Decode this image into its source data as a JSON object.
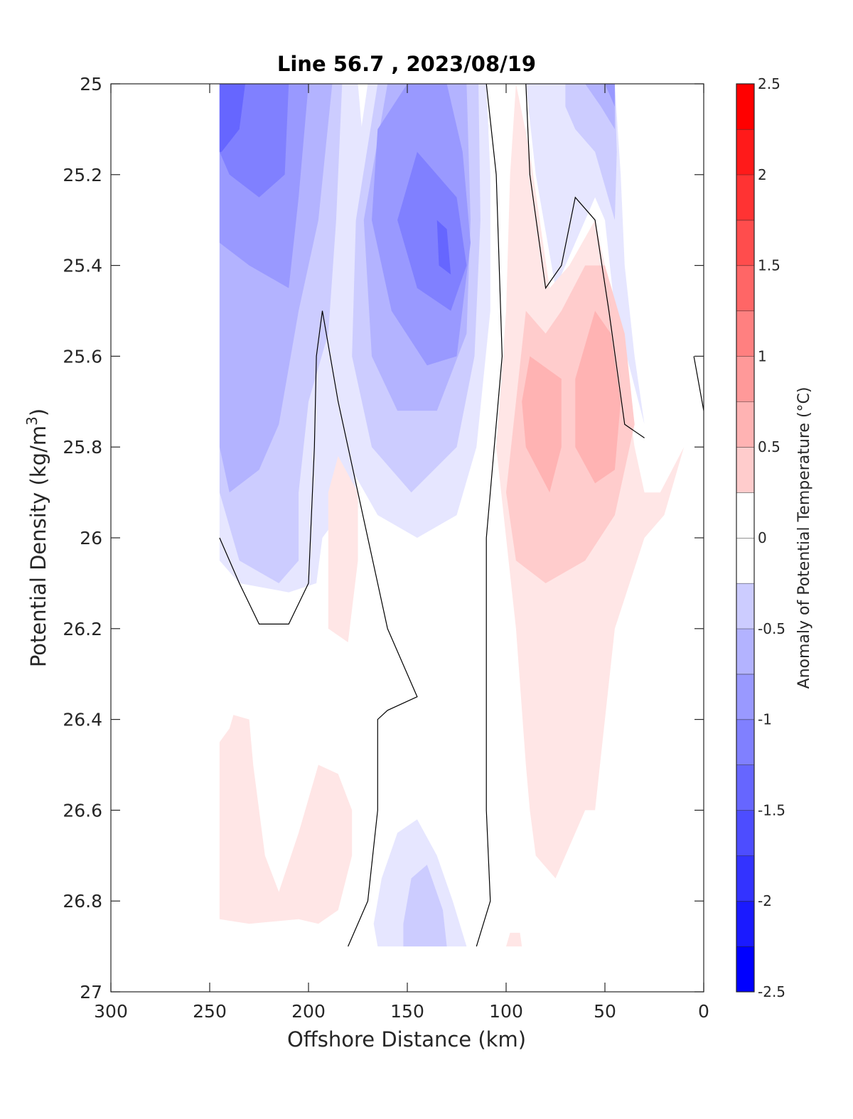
{
  "chart_data": {
    "type": "filled-contour",
    "title": "Line 56.7 , 2023/08/19",
    "xlabel": "Offshore Distance (km)",
    "ylabel_main": "Potential Density (kg/m",
    "ylabel_sup": "3",
    "ylabel_tail": ")",
    "xlim": [
      300,
      0
    ],
    "ylim": [
      25,
      27
    ],
    "x_reversed": true,
    "y_reversed": true,
    "xticks": [
      "300",
      "250",
      "200",
      "150",
      "100",
      "50",
      "0"
    ],
    "yticks": [
      "25",
      "25.2",
      "25.4",
      "25.6",
      "25.8",
      "26",
      "26.2",
      "26.4",
      "26.6",
      "26.8",
      "27"
    ],
    "colorbar": {
      "label": "Anomaly of Potential Temperature (°C)",
      "range": [
        -2.5,
        2.5
      ],
      "step": 0.25,
      "ticks": [
        "2.5",
        "2",
        "1.5",
        "1",
        "0.5",
        "0",
        "-0.5",
        "-1",
        "-1.5",
        "-2",
        "-2.5"
      ],
      "neg_color": "#0000ff",
      "pos_color": "#ff0000"
    },
    "regions": [
      {
        "level": -0.25,
        "pts": [
          [
            245,
            25
          ],
          [
            175,
            25
          ],
          [
            168,
            25.35
          ],
          [
            178,
            25.6
          ],
          [
            176,
            25.9
          ],
          [
            193,
            26.0
          ],
          [
            196,
            26.1
          ],
          [
            210,
            26.12
          ],
          [
            235,
            26.1
          ],
          [
            245,
            26.05
          ]
        ]
      },
      {
        "level": -0.5,
        "pts": [
          [
            245,
            25
          ],
          [
            183,
            25
          ],
          [
            186,
            25.3
          ],
          [
            190,
            25.55
          ],
          [
            200,
            25.7
          ],
          [
            205,
            25.9
          ],
          [
            205,
            26.05
          ],
          [
            215,
            26.1
          ],
          [
            235,
            26.05
          ],
          [
            245,
            25.9
          ]
        ]
      },
      {
        "level": -0.75,
        "pts": [
          [
            245,
            25
          ],
          [
            188,
            25
          ],
          [
            195,
            25.3
          ],
          [
            205,
            25.5
          ],
          [
            215,
            25.75
          ],
          [
            225,
            25.85
          ],
          [
            240,
            25.9
          ],
          [
            245,
            25.8
          ]
        ]
      },
      {
        "level": -1.0,
        "pts": [
          [
            245,
            25
          ],
          [
            200,
            25
          ],
          [
            205,
            25.25
          ],
          [
            210,
            25.45
          ],
          [
            230,
            25.4
          ],
          [
            245,
            25.35
          ]
        ]
      },
      {
        "level": -1.25,
        "pts": [
          [
            245,
            25
          ],
          [
            210,
            25
          ],
          [
            212,
            25.2
          ],
          [
            225,
            25.25
          ],
          [
            240,
            25.2
          ],
          [
            245,
            25.15
          ]
        ]
      },
      {
        "level": -1.5,
        "pts": [
          [
            245,
            25
          ],
          [
            232,
            25
          ],
          [
            235,
            25.1
          ],
          [
            244,
            25.15
          ],
          [
            245,
            25.15
          ]
        ]
      },
      {
        "level": -0.25,
        "pts": [
          [
            170,
            25
          ],
          [
            110,
            25
          ],
          [
            108,
            25.2
          ],
          [
            108,
            25.5
          ],
          [
            115,
            25.8
          ],
          [
            125,
            25.95
          ],
          [
            145,
            26.0
          ],
          [
            165,
            25.95
          ],
          [
            178,
            25.85
          ],
          [
            183,
            25.6
          ],
          [
            180,
            25.3
          ]
        ]
      },
      {
        "level": -0.5,
        "pts": [
          [
            165,
            25
          ],
          [
            114,
            25
          ],
          [
            113,
            25.3
          ],
          [
            116,
            25.6
          ],
          [
            125,
            25.8
          ],
          [
            148,
            25.9
          ],
          [
            168,
            25.8
          ],
          [
            178,
            25.6
          ],
          [
            176,
            25.3
          ]
        ]
      },
      {
        "level": -0.75,
        "pts": [
          [
            160,
            25
          ],
          [
            120,
            25
          ],
          [
            118,
            25.3
          ],
          [
            120,
            25.55
          ],
          [
            135,
            25.72
          ],
          [
            155,
            25.72
          ],
          [
            168,
            25.6
          ],
          [
            172,
            25.3
          ]
        ]
      },
      {
        "level": -1.0,
        "pts": [
          [
            150,
            25
          ],
          [
            130,
            25
          ],
          [
            122,
            25.15
          ],
          [
            118,
            25.35
          ],
          [
            125,
            25.6
          ],
          [
            140,
            25.62
          ],
          [
            158,
            25.5
          ],
          [
            168,
            25.3
          ],
          [
            165,
            25.1
          ]
        ]
      },
      {
        "level": -1.25,
        "pts": [
          [
            145,
            25.15
          ],
          [
            125,
            25.25
          ],
          [
            120,
            25.4
          ],
          [
            128,
            25.5
          ],
          [
            145,
            25.45
          ],
          [
            155,
            25.3
          ]
        ]
      },
      {
        "level": -1.5,
        "pts": [
          [
            135,
            25.3
          ],
          [
            130,
            25.32
          ],
          [
            128,
            25.42
          ],
          [
            134,
            25.4
          ]
        ]
      },
      {
        "level": -0.25,
        "pts": [
          [
            90,
            25
          ],
          [
            45,
            25
          ],
          [
            42,
            25.2
          ],
          [
            40,
            25.4
          ],
          [
            35,
            25.6
          ],
          [
            30,
            25.75
          ],
          [
            45,
            25.5
          ],
          [
            50,
            25.3
          ],
          [
            55,
            25.25
          ],
          [
            65,
            25.35
          ],
          [
            75,
            25.45
          ],
          [
            85,
            25.2
          ]
        ]
      },
      {
        "level": -0.5,
        "pts": [
          [
            70,
            25
          ],
          [
            45,
            25
          ],
          [
            44,
            25.15
          ],
          [
            45,
            25.3
          ],
          [
            55,
            25.15
          ],
          [
            65,
            25.1
          ],
          [
            70,
            25.05
          ]
        ]
      },
      {
        "level": -0.75,
        "pts": [
          [
            60,
            25
          ],
          [
            45,
            25
          ],
          [
            45,
            25.1
          ],
          [
            52,
            25.05
          ]
        ]
      },
      {
        "level": -1.0,
        "pts": [
          [
            50,
            25
          ],
          [
            45,
            25
          ],
          [
            45,
            25.05
          ]
        ]
      },
      {
        "level": 0.25,
        "pts": [
          [
            95,
            25
          ],
          [
            98,
            25.2
          ],
          [
            100,
            25.5
          ],
          [
            105,
            25.8
          ],
          [
            100,
            26.0
          ],
          [
            95,
            26.2
          ],
          [
            90,
            26.5
          ],
          [
            88,
            26.6
          ],
          [
            85,
            26.7
          ],
          [
            75,
            26.75
          ],
          [
            60,
            26.6
          ],
          [
            55,
            26.6
          ],
          [
            50,
            26.4
          ],
          [
            45,
            26.2
          ],
          [
            30,
            26.0
          ],
          [
            20,
            25.95
          ],
          [
            10,
            25.8
          ],
          [
            22,
            25.9
          ],
          [
            30,
            25.9
          ],
          [
            35,
            25.8
          ],
          [
            45,
            25.5
          ],
          [
            55,
            25.3
          ],
          [
            68,
            25.4
          ],
          [
            78,
            25.45
          ],
          [
            88,
            25.15
          ]
        ]
      },
      {
        "level": 0.5,
        "pts": [
          [
            90,
            25.5
          ],
          [
            95,
            25.7
          ],
          [
            100,
            25.9
          ],
          [
            95,
            26.05
          ],
          [
            80,
            26.1
          ],
          [
            60,
            26.05
          ],
          [
            45,
            25.95
          ],
          [
            35,
            25.75
          ],
          [
            40,
            25.55
          ],
          [
            50,
            25.4
          ],
          [
            60,
            25.4
          ],
          [
            72,
            25.5
          ],
          [
            80,
            25.55
          ]
        ]
      },
      {
        "level": 0.75,
        "pts": [
          [
            88,
            25.6
          ],
          [
            92,
            25.7
          ],
          [
            90,
            25.8
          ],
          [
            78,
            25.9
          ],
          [
            72,
            25.8
          ],
          [
            72,
            25.65
          ]
        ]
      },
      {
        "level": 0.75,
        "pts": [
          [
            55,
            25.5
          ],
          [
            65,
            25.65
          ],
          [
            65,
            25.8
          ],
          [
            55,
            25.88
          ],
          [
            45,
            25.85
          ],
          [
            42,
            25.7
          ],
          [
            47,
            25.55
          ]
        ]
      },
      {
        "level": 0.25,
        "pts": [
          [
            185,
            25.82
          ],
          [
            190,
            25.9
          ],
          [
            190,
            26.2
          ],
          [
            180,
            26.23
          ],
          [
            175,
            26.05
          ],
          [
            175,
            25.9
          ]
        ]
      },
      {
        "level": 0.25,
        "pts": [
          [
            245,
            26.45
          ],
          [
            240,
            26.42
          ],
          [
            238,
            26.39
          ],
          [
            230,
            26.4
          ],
          [
            228,
            26.5
          ],
          [
            222,
            26.7
          ],
          [
            215,
            26.78
          ],
          [
            205,
            26.65
          ],
          [
            195,
            26.5
          ],
          [
            185,
            26.52
          ],
          [
            178,
            26.6
          ],
          [
            178,
            26.7
          ],
          [
            185,
            26.82
          ],
          [
            195,
            26.85
          ],
          [
            205,
            26.84
          ],
          [
            230,
            26.85
          ],
          [
            245,
            26.84
          ]
        ]
      },
      {
        "level": 0.25,
        "pts": [
          [
            100,
            26.9
          ],
          [
            92,
            26.9
          ],
          [
            93,
            26.87
          ],
          [
            98,
            26.87
          ]
        ]
      },
      {
        "level": -0.25,
        "pts": [
          [
            165,
            26.9
          ],
          [
            120,
            26.9
          ],
          [
            127,
            26.8
          ],
          [
            135,
            26.7
          ],
          [
            145,
            26.62
          ],
          [
            155,
            26.65
          ],
          [
            163,
            26.75
          ],
          [
            167,
            26.85
          ]
        ]
      },
      {
        "level": -0.5,
        "pts": [
          [
            152,
            26.9
          ],
          [
            130,
            26.9
          ],
          [
            132,
            26.82
          ],
          [
            140,
            26.72
          ],
          [
            148,
            26.75
          ],
          [
            152,
            26.85
          ]
        ]
      }
    ],
    "zero_contours": [
      {
        "pts": [
          [
            245,
            26.0
          ],
          [
            235,
            26.1
          ],
          [
            225,
            26.19
          ],
          [
            210,
            26.19
          ],
          [
            200,
            26.1
          ],
          [
            197,
            25.8
          ],
          [
            196,
            25.6
          ],
          [
            193,
            25.5
          ],
          [
            185,
            25.7
          ],
          [
            175,
            25.9
          ],
          [
            165,
            26.1
          ],
          [
            160,
            26.2
          ],
          [
            150,
            26.3
          ],
          [
            145,
            26.35
          ],
          [
            160,
            26.38
          ],
          [
            165,
            26.4
          ],
          [
            165,
            26.6
          ],
          [
            170,
            26.8
          ],
          [
            180,
            26.9
          ]
        ]
      },
      {
        "pts": [
          [
            110,
            25
          ],
          [
            105,
            25.2
          ],
          [
            102,
            25.6
          ],
          [
            110,
            26.0
          ],
          [
            110,
            26.3
          ],
          [
            110,
            26.6
          ],
          [
            108,
            26.8
          ],
          [
            115,
            26.9
          ]
        ]
      },
      {
        "pts": [
          [
            90,
            25
          ],
          [
            88,
            25.2
          ],
          [
            80,
            25.45
          ],
          [
            72,
            25.4
          ],
          [
            65,
            25.25
          ],
          [
            55,
            25.3
          ],
          [
            48,
            25.5
          ],
          [
            40,
            25.75
          ],
          [
            30,
            25.78
          ]
        ]
      },
      {
        "pts": [
          [
            5,
            25.6
          ],
          [
            0,
            25.72
          ]
        ]
      }
    ]
  }
}
